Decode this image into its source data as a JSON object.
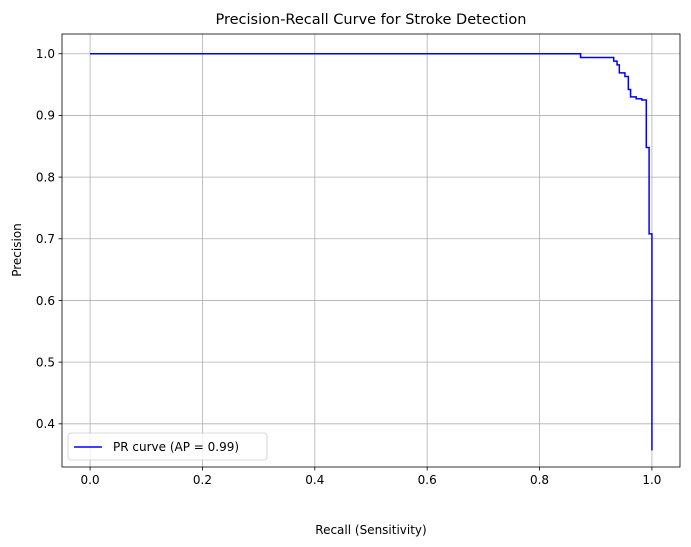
{
  "chart_data": {
    "type": "line",
    "title": "Precision-Recall Curve for Stroke Detection",
    "xlabel": "Recall (Sensitivity)",
    "ylabel": "Precision",
    "xlim": [
      -0.05,
      1.05
    ],
    "ylim": [
      0.33,
      1.032
    ],
    "xticks": [
      0.0,
      0.2,
      0.4,
      0.6,
      0.8,
      1.0
    ],
    "xtick_labels": [
      "0.0",
      "0.2",
      "0.4",
      "0.6",
      "0.8",
      "1.0"
    ],
    "yticks": [
      0.4,
      0.5,
      0.6,
      0.7,
      0.8,
      0.9,
      1.0
    ],
    "ytick_labels": [
      "0.4",
      "0.5",
      "0.6",
      "0.7",
      "0.8",
      "0.9",
      "1.0"
    ],
    "grid": true,
    "legend_position": "lower-left",
    "series": [
      {
        "name": "PR curve (AP = 0.99)",
        "color": "#0000ff",
        "step": "post",
        "x": [
          0.0,
          0.873,
          0.873,
          0.932,
          0.932,
          0.938,
          0.938,
          0.942,
          0.942,
          0.952,
          0.952,
          0.958,
          0.958,
          0.962,
          0.962,
          0.972,
          0.972,
          0.982,
          0.982,
          0.99,
          0.99,
          0.995,
          0.995,
          1.0,
          1.0
        ],
        "y": [
          1.0,
          1.0,
          0.994,
          0.994,
          0.988,
          0.988,
          0.982,
          0.982,
          0.969,
          0.969,
          0.963,
          0.963,
          0.942,
          0.942,
          0.93,
          0.93,
          0.927,
          0.927,
          0.925,
          0.925,
          0.848,
          0.848,
          0.708,
          0.708,
          0.357
        ]
      }
    ]
  }
}
